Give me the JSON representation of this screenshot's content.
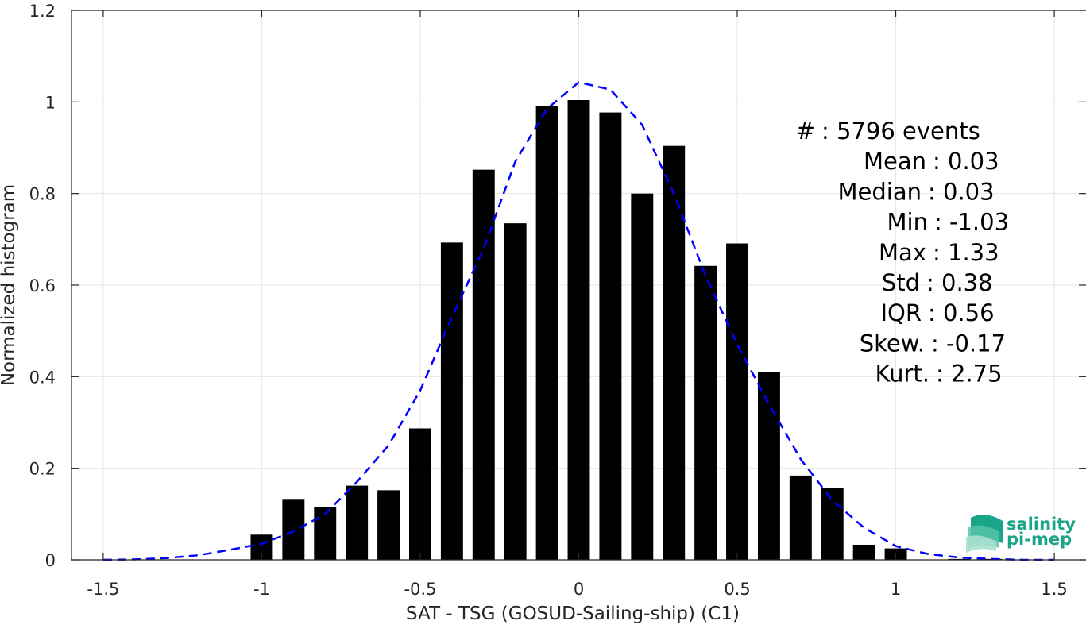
{
  "chart_data": {
    "type": "bar",
    "xlabel": "SAT - TSG (GOSUD-Sailing-ship) (C1)",
    "ylabel": "Normalized histogram",
    "xlim": [
      -1.6,
      1.6
    ],
    "ylim": [
      0,
      1.2
    ],
    "xticks": [
      -1.5,
      -1,
      -0.5,
      0,
      0.5,
      1,
      1.5
    ],
    "xtick_labels": [
      "-1.5",
      "-1",
      "-0.5",
      "0",
      "0.5",
      "1",
      "1.5"
    ],
    "yticks": [
      0,
      0.2,
      0.4,
      0.6,
      0.8,
      1,
      1.2
    ],
    "ytick_labels": [
      "0",
      "0.2",
      "0.4",
      "0.6",
      "0.8",
      "1",
      "1.2"
    ],
    "grid": true,
    "bar_width": 0.07,
    "colors": {
      "bars": "#000000",
      "fit": "#0000ff",
      "grid": "#e6e6e6",
      "axis": "#262626"
    },
    "bars": {
      "x": [
        -1.0,
        -0.9,
        -0.8,
        -0.7,
        -0.6,
        -0.5,
        -0.4,
        -0.3,
        -0.2,
        -0.1,
        0.0,
        0.1,
        0.2,
        0.3,
        0.4,
        0.5,
        0.6,
        0.7,
        0.8,
        0.9,
        1.0,
        1.2,
        1.3
      ],
      "values": [
        0.055,
        0.133,
        0.116,
        0.162,
        0.152,
        0.287,
        0.693,
        0.852,
        0.735,
        0.991,
        1.004,
        0.977,
        0.8,
        0.904,
        0.642,
        0.691,
        0.41,
        0.184,
        0.157,
        0.033,
        0.025,
        0.002,
        0.002
      ]
    },
    "fit_curve": {
      "style": "dashed",
      "x": [
        -1.5,
        -1.4,
        -1.3,
        -1.2,
        -1.1,
        -1.0,
        -0.9,
        -0.8,
        -0.7,
        -0.6,
        -0.5,
        -0.4,
        -0.3,
        -0.2,
        -0.1,
        0.0,
        0.1,
        0.2,
        0.3,
        0.4,
        0.5,
        0.6,
        0.7,
        0.8,
        0.9,
        1.0,
        1.1,
        1.2,
        1.3,
        1.4,
        1.5
      ],
      "y": [
        0.0,
        0.001,
        0.004,
        0.01,
        0.022,
        0.035,
        0.062,
        0.1,
        0.17,
        0.25,
        0.37,
        0.53,
        0.68,
        0.87,
        0.985,
        1.043,
        1.027,
        0.95,
        0.8,
        0.62,
        0.47,
        0.34,
        0.22,
        0.13,
        0.07,
        0.03,
        0.013,
        0.005,
        0.002,
        0.0,
        0.0
      ]
    },
    "stats": [
      {
        "label": "#",
        "value": ": 5796 events"
      },
      {
        "label": "Mean",
        "value": ": 0.03"
      },
      {
        "label": "Median",
        "value": ": 0.03"
      },
      {
        "label": "Min",
        "value": ": -1.03"
      },
      {
        "label": "Max",
        "value": ": 1.33"
      },
      {
        "label": "Std",
        "value": ": 0.38"
      },
      {
        "label": "IQR",
        "value": ": 0.56"
      },
      {
        "label": "Skew.",
        "value": ": -0.17"
      },
      {
        "label": "Kurt.",
        "value": ": 2.75"
      }
    ]
  },
  "logo": {
    "line1": "salinity",
    "line2": "pi-mep",
    "color": "#1aa58a"
  }
}
